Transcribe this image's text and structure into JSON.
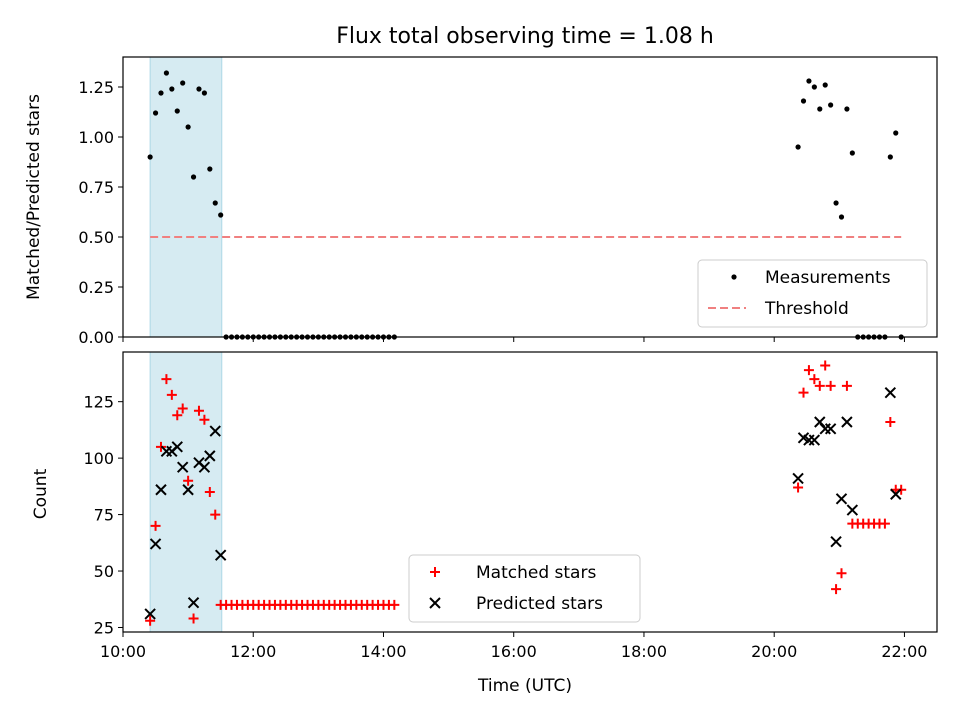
{
  "title": "Flux total observing time = 1.08 h",
  "chart_data": [
    {
      "type": "scatter",
      "ylabel": "Matched/Predicted stars",
      "xlabel": "",
      "xlim": [
        "10:00",
        "22:30"
      ],
      "ylim": [
        0,
        1.4
      ],
      "yticks": [
        0.0,
        0.25,
        0.5,
        0.75,
        1.0,
        1.25
      ],
      "ytick_labels": [
        "0.00",
        "0.25",
        "0.50",
        "0.75",
        "1.00",
        "1.25"
      ],
      "highlight_span": [
        "10:25",
        "11:31"
      ],
      "highlight_color": "#add8e6",
      "legend_position": "lower-right",
      "series": [
        {
          "name": "Measurements",
          "kind": "scatter",
          "color": "#000000",
          "points": [
            [
              "10:25",
              0.9
            ],
            [
              "10:30",
              1.12
            ],
            [
              "10:35",
              1.22
            ],
            [
              "10:40",
              1.32
            ],
            [
              "10:45",
              1.24
            ],
            [
              "10:50",
              1.13
            ],
            [
              "10:55",
              1.27
            ],
            [
              "11:00",
              1.05
            ],
            [
              "11:05",
              0.8
            ],
            [
              "11:10",
              1.24
            ],
            [
              "11:15",
              1.22
            ],
            [
              "11:20",
              0.84
            ],
            [
              "11:25",
              0.67
            ],
            [
              "11:30",
              0.61
            ],
            [
              "11:35",
              0
            ],
            [
              "11:40",
              0
            ],
            [
              "11:45",
              0
            ],
            [
              "11:50",
              0
            ],
            [
              "11:55",
              0
            ],
            [
              "12:00",
              0
            ],
            [
              "12:05",
              0
            ],
            [
              "12:10",
              0
            ],
            [
              "12:15",
              0
            ],
            [
              "12:20",
              0
            ],
            [
              "12:25",
              0
            ],
            [
              "12:30",
              0
            ],
            [
              "12:35",
              0
            ],
            [
              "12:40",
              0
            ],
            [
              "12:45",
              0
            ],
            [
              "12:50",
              0
            ],
            [
              "12:55",
              0
            ],
            [
              "13:00",
              0
            ],
            [
              "13:05",
              0
            ],
            [
              "13:10",
              0
            ],
            [
              "13:15",
              0
            ],
            [
              "13:20",
              0
            ],
            [
              "13:25",
              0
            ],
            [
              "13:30",
              0
            ],
            [
              "13:35",
              0
            ],
            [
              "13:40",
              0
            ],
            [
              "13:45",
              0
            ],
            [
              "13:50",
              0
            ],
            [
              "13:55",
              0
            ],
            [
              "14:00",
              0
            ],
            [
              "14:05",
              0
            ],
            [
              "14:10",
              0
            ],
            [
              "20:22",
              0.95
            ],
            [
              "20:27",
              1.18
            ],
            [
              "20:32",
              1.28
            ],
            [
              "20:37",
              1.25
            ],
            [
              "20:42",
              1.14
            ],
            [
              "20:47",
              1.26
            ],
            [
              "20:52",
              1.16
            ],
            [
              "20:57",
              0.67
            ],
            [
              "21:02",
              0.6
            ],
            [
              "21:07",
              1.14
            ],
            [
              "21:12",
              0.92
            ],
            [
              "21:17",
              0
            ],
            [
              "21:22",
              0
            ],
            [
              "21:27",
              0
            ],
            [
              "21:32",
              0
            ],
            [
              "21:37",
              0
            ],
            [
              "21:42",
              0
            ],
            [
              "21:47",
              0.9
            ],
            [
              "21:52",
              1.02
            ],
            [
              "21:57",
              0
            ]
          ]
        },
        {
          "name": "Threshold",
          "kind": "dashed-line",
          "color": "#f08080",
          "x": [
            "10:25",
            "21:57"
          ],
          "y": 0.5
        }
      ]
    },
    {
      "type": "scatter",
      "ylabel": "Count",
      "xlabel": "Time (UTC)",
      "xlim": [
        "10:00",
        "22:30"
      ],
      "ylim": [
        23,
        147
      ],
      "yticks": [
        25,
        50,
        75,
        100,
        125
      ],
      "ytick_labels": [
        "25",
        "50",
        "75",
        "100",
        "125"
      ],
      "xticks": [
        "10:00",
        "12:00",
        "14:00",
        "16:00",
        "18:00",
        "20:00",
        "22:00"
      ],
      "highlight_span": [
        "10:25",
        "11:31"
      ],
      "highlight_color": "#add8e6",
      "legend_position": "lower-center",
      "series": [
        {
          "name": "Matched stars",
          "marker": "plus",
          "color": "#ff0000",
          "points": [
            [
              "10:25",
              28
            ],
            [
              "10:30",
              70
            ],
            [
              "10:35",
              105
            ],
            [
              "10:40",
              135
            ],
            [
              "10:45",
              128
            ],
            [
              "10:50",
              119
            ],
            [
              "10:55",
              122
            ],
            [
              "11:00",
              90
            ],
            [
              "11:05",
              29
            ],
            [
              "11:10",
              121
            ],
            [
              "11:15",
              117
            ],
            [
              "11:20",
              85
            ],
            [
              "11:25",
              75
            ],
            [
              "11:30",
              35
            ],
            [
              "11:35",
              35
            ],
            [
              "11:40",
              35
            ],
            [
              "11:45",
              35
            ],
            [
              "11:50",
              35
            ],
            [
              "11:55",
              35
            ],
            [
              "12:00",
              35
            ],
            [
              "12:05",
              35
            ],
            [
              "12:10",
              35
            ],
            [
              "12:15",
              35
            ],
            [
              "12:20",
              35
            ],
            [
              "12:25",
              35
            ],
            [
              "12:30",
              35
            ],
            [
              "12:35",
              35
            ],
            [
              "12:40",
              35
            ],
            [
              "12:45",
              35
            ],
            [
              "12:50",
              35
            ],
            [
              "12:55",
              35
            ],
            [
              "13:00",
              35
            ],
            [
              "13:05",
              35
            ],
            [
              "13:10",
              35
            ],
            [
              "13:15",
              35
            ],
            [
              "13:20",
              35
            ],
            [
              "13:25",
              35
            ],
            [
              "13:30",
              35
            ],
            [
              "13:35",
              35
            ],
            [
              "13:40",
              35
            ],
            [
              "13:45",
              35
            ],
            [
              "13:50",
              35
            ],
            [
              "13:55",
              35
            ],
            [
              "14:00",
              35
            ],
            [
              "14:05",
              35
            ],
            [
              "14:10",
              35
            ],
            [
              "20:22",
              87
            ],
            [
              "20:27",
              129
            ],
            [
              "20:32",
              139
            ],
            [
              "20:37",
              135
            ],
            [
              "20:42",
              132
            ],
            [
              "20:47",
              141
            ],
            [
              "20:52",
              132
            ],
            [
              "20:57",
              42
            ],
            [
              "21:02",
              49
            ],
            [
              "21:07",
              132
            ],
            [
              "21:12",
              71
            ],
            [
              "21:17",
              71
            ],
            [
              "21:22",
              71
            ],
            [
              "21:27",
              71
            ],
            [
              "21:32",
              71
            ],
            [
              "21:37",
              71
            ],
            [
              "21:42",
              71
            ],
            [
              "21:47",
              116
            ],
            [
              "21:52",
              86
            ],
            [
              "21:57",
              86
            ]
          ]
        },
        {
          "name": "Predicted stars",
          "marker": "x",
          "color": "#000000",
          "points": [
            [
              "10:25",
              31
            ],
            [
              "10:30",
              62
            ],
            [
              "10:35",
              86
            ],
            [
              "10:40",
              103
            ],
            [
              "10:45",
              103
            ],
            [
              "10:50",
              105
            ],
            [
              "10:55",
              96
            ],
            [
              "11:00",
              86
            ],
            [
              "11:05",
              36
            ],
            [
              "11:10",
              98
            ],
            [
              "11:15",
              96
            ],
            [
              "11:20",
              101
            ],
            [
              "11:25",
              112
            ],
            [
              "11:30",
              57
            ],
            [
              "20:22",
              91
            ],
            [
              "20:27",
              109
            ],
            [
              "20:32",
              108
            ],
            [
              "20:37",
              108
            ],
            [
              "20:42",
              116
            ],
            [
              "20:47",
              113
            ],
            [
              "20:52",
              113
            ],
            [
              "20:57",
              63
            ],
            [
              "21:02",
              82
            ],
            [
              "21:07",
              116
            ],
            [
              "21:12",
              77
            ],
            [
              "21:47",
              129
            ],
            [
              "21:52",
              84
            ]
          ]
        }
      ]
    }
  ]
}
